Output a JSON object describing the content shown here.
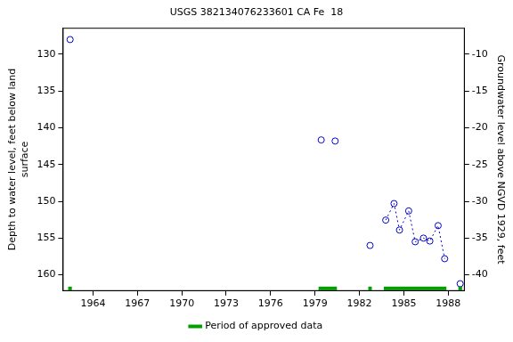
{
  "chart_data": {
    "type": "scatter",
    "title": "USGS 382134076233601 CA Fe  18",
    "y_label": [
      "Depth to water level, feet below land",
      "surface"
    ],
    "y2_label": "Groundwater level above NGVD 1929, feet",
    "xlim": [
      1961.95,
      1989.12
    ],
    "xticks": [
      1964,
      1967,
      1970,
      1973,
      1976,
      1979,
      1982,
      1985,
      1988
    ],
    "ylim": [
      162.2,
      126.4
    ],
    "yticks": [
      130,
      135,
      140,
      145,
      150,
      155,
      160
    ],
    "y2lim": [
      -42.2,
      -6.4
    ],
    "y2ticks": [
      -40,
      -35,
      -30,
      -25,
      -20,
      -15,
      -10
    ],
    "grid": false,
    "legend": "bottom",
    "series": [
      {
        "color": "#0000cc",
        "marker": "circle",
        "line_style": "none",
        "x": [
          1962.45,
          1979.42,
          1980.36,
          1982.72,
          1988.81
        ],
        "values": [
          128.0,
          141.65,
          141.8,
          156.0,
          161.2
        ]
      },
      {
        "color": "#0000cc",
        "marker": "circle",
        "line_style": "dotted",
        "x": [
          1983.78,
          1984.34,
          1984.71,
          1985.33,
          1985.77,
          1986.33,
          1986.76,
          1987.32,
          1987.76
        ],
        "values": [
          152.55,
          150.3,
          153.9,
          151.3,
          155.5,
          155.0,
          155.4,
          153.3,
          157.8
        ]
      }
    ],
    "approved_periods": {
      "name": "Period of approved data",
      "color": "#00a000",
      "ranges": [
        [
          1962.32,
          1962.57
        ],
        [
          1979.24,
          1980.48
        ],
        [
          1982.6,
          1982.84
        ],
        [
          1983.65,
          1987.88
        ],
        [
          1988.69,
          1988.94
        ]
      ]
    }
  }
}
